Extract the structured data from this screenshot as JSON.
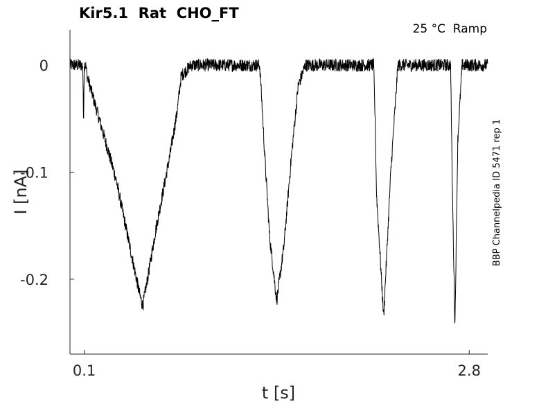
{
  "chart_data": {
    "type": "line",
    "title": "Kir5.1  Rat  CHO_FT",
    "condition": "25 °C  Ramp",
    "side_label": "BBP Channelpedia ID 5471 rep 1",
    "xlabel": "t [s]",
    "ylabel": "I [nA]",
    "xlim": [
      0.0,
      2.93
    ],
    "ylim": [
      -0.27,
      0.033
    ],
    "x_ticks": [
      0.1,
      2.8
    ],
    "x_tick_labels": [
      "0.1",
      "2.8"
    ],
    "y_ticks": [
      0,
      -0.1,
      -0.2
    ],
    "y_tick_labels": [
      "0",
      "-0.1",
      "-0.2"
    ],
    "grid": false,
    "series": [
      {
        "color": "#000000",
        "noise": 0.006,
        "x": [
          0.0,
          0.09,
          0.095,
          0.1,
          0.105,
          0.11,
          0.12,
          0.32,
          0.49,
          0.51,
          0.54,
          0.6,
          0.7,
          0.75,
          0.78,
          0.85,
          0.9,
          0.95,
          1.0,
          1.05,
          1.1,
          1.15,
          1.2,
          1.25,
          1.3,
          1.33,
          1.34,
          1.36,
          1.4,
          1.45,
          1.5,
          1.55,
          1.6,
          1.65,
          1.7,
          1.73,
          1.75,
          1.8,
          1.85,
          1.9,
          2.0,
          2.05,
          2.1,
          2.13,
          2.14,
          2.15,
          2.2,
          2.25,
          2.3,
          2.35,
          2.4,
          2.45,
          2.5,
          2.55,
          2.6,
          2.65,
          2.66,
          2.67,
          2.68,
          2.7,
          2.72,
          2.75,
          2.8,
          2.9,
          2.93
        ],
        "y": [
          0.0,
          0.0,
          -0.055,
          0.0,
          0.0,
          0.0,
          -0.01,
          -0.105,
          -0.215,
          -0.225,
          -0.203,
          -0.155,
          -0.085,
          -0.045,
          -0.01,
          0.0,
          0.0,
          0.0,
          0.0,
          0.0,
          0.0,
          0.0,
          0.0,
          0.0,
          0.0,
          0.0,
          -0.02,
          -0.07,
          -0.16,
          -0.22,
          -0.17,
          -0.09,
          -0.02,
          0.0,
          0.0,
          0.0,
          0.0,
          0.0,
          0.0,
          0.0,
          0.0,
          0.0,
          0.0,
          0.0,
          -0.05,
          -0.12,
          -0.235,
          -0.1,
          0.0,
          0.0,
          0.0,
          0.0,
          0.0,
          0.0,
          0.0,
          0.0,
          0.0,
          0.0,
          -0.1,
          -0.245,
          -0.07,
          0.0,
          0.0,
          0.0,
          0.0
        ]
      }
    ]
  }
}
